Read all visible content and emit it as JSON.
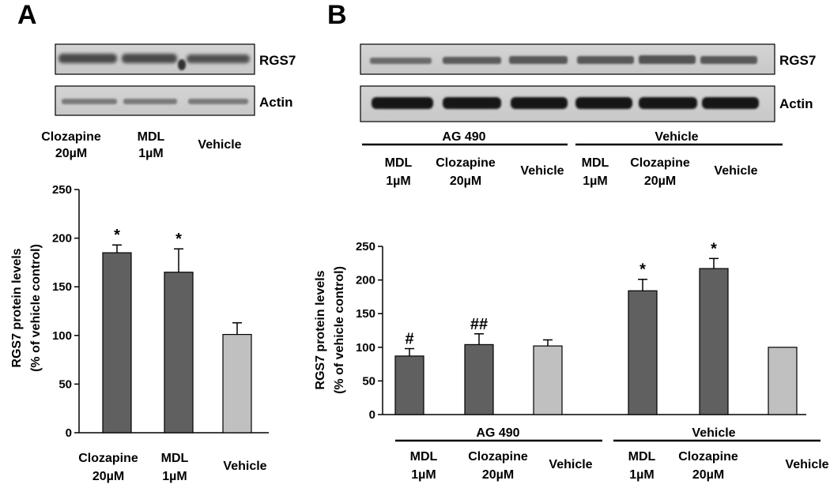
{
  "panel_a": {
    "letter": "A",
    "blot_labels": [
      "RGS7",
      "Actin"
    ],
    "lanes": [
      {
        "line1": "Clozapine",
        "line2": "20µM"
      },
      {
        "line1": "MDL",
        "line2": "1µM"
      },
      {
        "line1": "Vehicle",
        "line2": ""
      }
    ]
  },
  "panel_b": {
    "letter": "B",
    "blot_labels": [
      "RGS7",
      "Actin"
    ],
    "groups": [
      "AG 490",
      "Vehicle"
    ],
    "lanes": [
      {
        "line1": "MDL",
        "line2": "1µM"
      },
      {
        "line1": "Clozapine",
        "line2": "20µM"
      },
      {
        "line1": "Vehicle",
        "line2": ""
      },
      {
        "line1": "MDL",
        "line2": "1µM"
      },
      {
        "line1": "Clozapine",
        "line2": "20µM"
      },
      {
        "line1": "Vehicle",
        "line2": ""
      }
    ]
  },
  "colors": {
    "treatment": "#606060",
    "vehicle": "#c0c0c0"
  },
  "chart_data": [
    {
      "type": "bar",
      "ylabel": [
        "RGS7 protein levels",
        "(% of vehicle control)"
      ],
      "ylim": [
        0,
        250
      ],
      "yticks": [
        0,
        50,
        100,
        150,
        200,
        250
      ],
      "categories": [
        "Clozapine 20µM",
        "MDL 1µM",
        "Vehicle"
      ],
      "cat_lines": [
        [
          "Clozapine",
          "20µM"
        ],
        [
          "MDL",
          "1µM"
        ],
        [
          "Vehicle",
          ""
        ]
      ],
      "values": [
        185,
        165,
        101
      ],
      "errors": [
        8,
        24,
        12
      ],
      "annotations": [
        "*",
        "*",
        ""
      ],
      "bar_colors": [
        "treatment",
        "treatment",
        "vehicle"
      ]
    },
    {
      "type": "bar",
      "ylabel": [
        "RGS7 protein levels",
        "(% of vehicle control)"
      ],
      "ylim": [
        0,
        250
      ],
      "yticks": [
        0,
        50,
        100,
        150,
        200,
        250
      ],
      "groups": [
        "AG 490",
        "Vehicle"
      ],
      "categories": [
        "MDL 1µM",
        "Clozapine 20µM",
        "Vehicle",
        "MDL 1µM",
        "Clozapine 20µM",
        "Vehicle"
      ],
      "cat_lines": [
        [
          "MDL",
          "1µM"
        ],
        [
          "Clozapine",
          "20µM"
        ],
        [
          "Vehicle",
          ""
        ],
        [
          "MDL",
          "1µM"
        ],
        [
          "Clozapine",
          "20µM"
        ],
        [
          "Vehicle",
          ""
        ]
      ],
      "values": [
        87,
        104,
        102,
        184,
        217,
        100
      ],
      "errors": [
        11,
        16,
        9,
        17,
        15,
        0
      ],
      "annotations": [
        "#",
        "##",
        "",
        "*",
        "*",
        ""
      ],
      "bar_colors": [
        "treatment",
        "treatment",
        "vehicle",
        "treatment",
        "treatment",
        "vehicle"
      ]
    }
  ]
}
